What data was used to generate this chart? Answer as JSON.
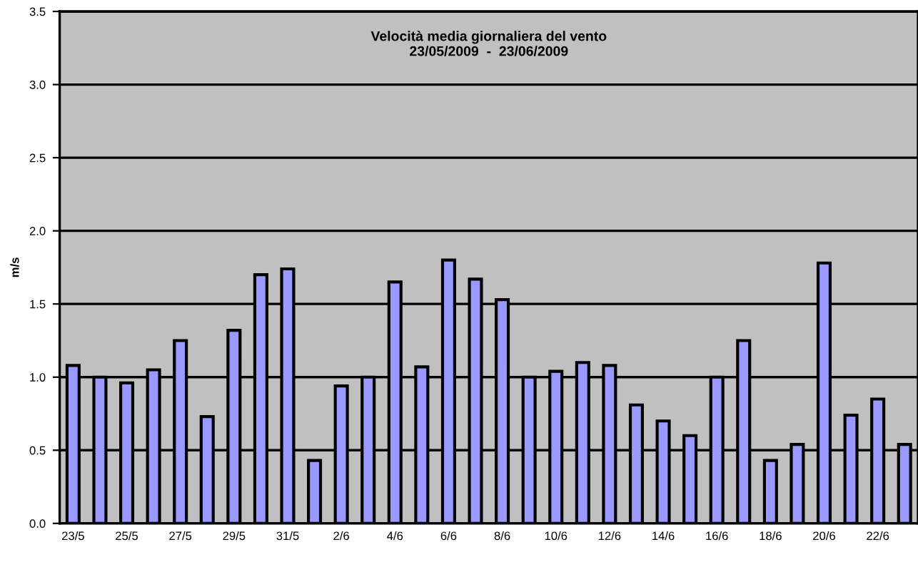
{
  "chart_data": {
    "type": "bar",
    "title": "Velocità media giornaliera del vento\n23/05/2009  -  23/06/2009",
    "ylabel": "m/s",
    "categories": [
      "23/5",
      null,
      "25/5",
      null,
      "27/5",
      null,
      "29/5",
      null,
      "31/5",
      null,
      "2/6",
      null,
      "4/6",
      null,
      "6/6",
      null,
      "8/6",
      null,
      "10/6",
      null,
      "12/6",
      null,
      "14/6",
      null,
      "16/6",
      null,
      "18/6",
      null,
      "20/6",
      null,
      "22/6",
      null
    ],
    "values": [
      1.08,
      1.0,
      0.96,
      1.05,
      1.25,
      0.73,
      1.32,
      1.7,
      1.74,
      0.43,
      0.94,
      1.0,
      1.65,
      1.07,
      1.8,
      1.67,
      1.53,
      1.0,
      1.04,
      1.1,
      1.08,
      0.81,
      0.7,
      0.6,
      1.0,
      1.25,
      0.43,
      0.54,
      1.78,
      0.74,
      0.85,
      0.54
    ],
    "color": "#9999ff",
    "ylim": [
      0,
      3.5
    ],
    "yticks": [
      {
        "value": 0,
        "label": "0.0"
      },
      {
        "value": 0.5,
        "label": "0.5"
      },
      {
        "value": 1,
        "label": "1.0"
      },
      {
        "value": 1.5,
        "label": "1.5"
      },
      {
        "value": 2,
        "label": "2.0"
      },
      {
        "value": 2.5,
        "label": "2.5"
      },
      {
        "value": 3,
        "label": "3.0"
      },
      {
        "value": 3.5,
        "label": "3.5"
      }
    ],
    "grid": "y"
  }
}
